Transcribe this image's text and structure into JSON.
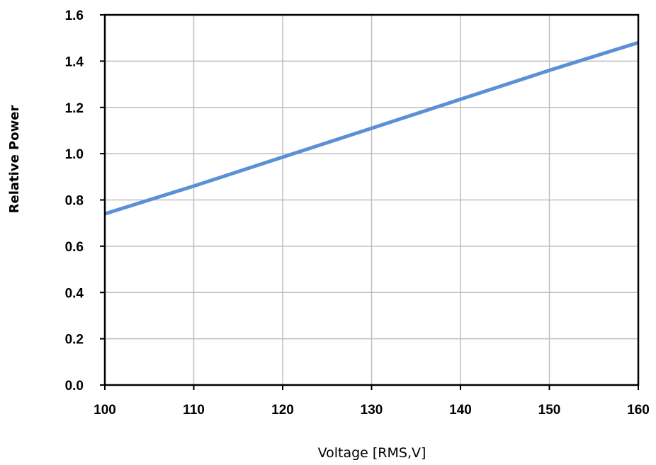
{
  "chart_data": {
    "type": "line",
    "title": "",
    "xlabel": "Voltage  [RMS,V]",
    "ylabel": "Relative Power",
    "xlim": [
      100,
      160
    ],
    "ylim": [
      0.0,
      1.6
    ],
    "x_ticks": [
      "100",
      "110",
      "120",
      "130",
      "140",
      "150",
      "160"
    ],
    "y_ticks": [
      "0.0",
      "0.2",
      "0.4",
      "0.6",
      "0.8",
      "1.0",
      "1.2",
      "1.4",
      "1.6"
    ],
    "grid": true,
    "legend": "none",
    "series": [
      {
        "color": "#5b8fd6",
        "x": [
          100,
          110,
          120,
          130,
          140,
          150,
          160
        ],
        "y": [
          0.74,
          0.86,
          0.985,
          1.11,
          1.235,
          1.36,
          1.48
        ]
      }
    ]
  }
}
